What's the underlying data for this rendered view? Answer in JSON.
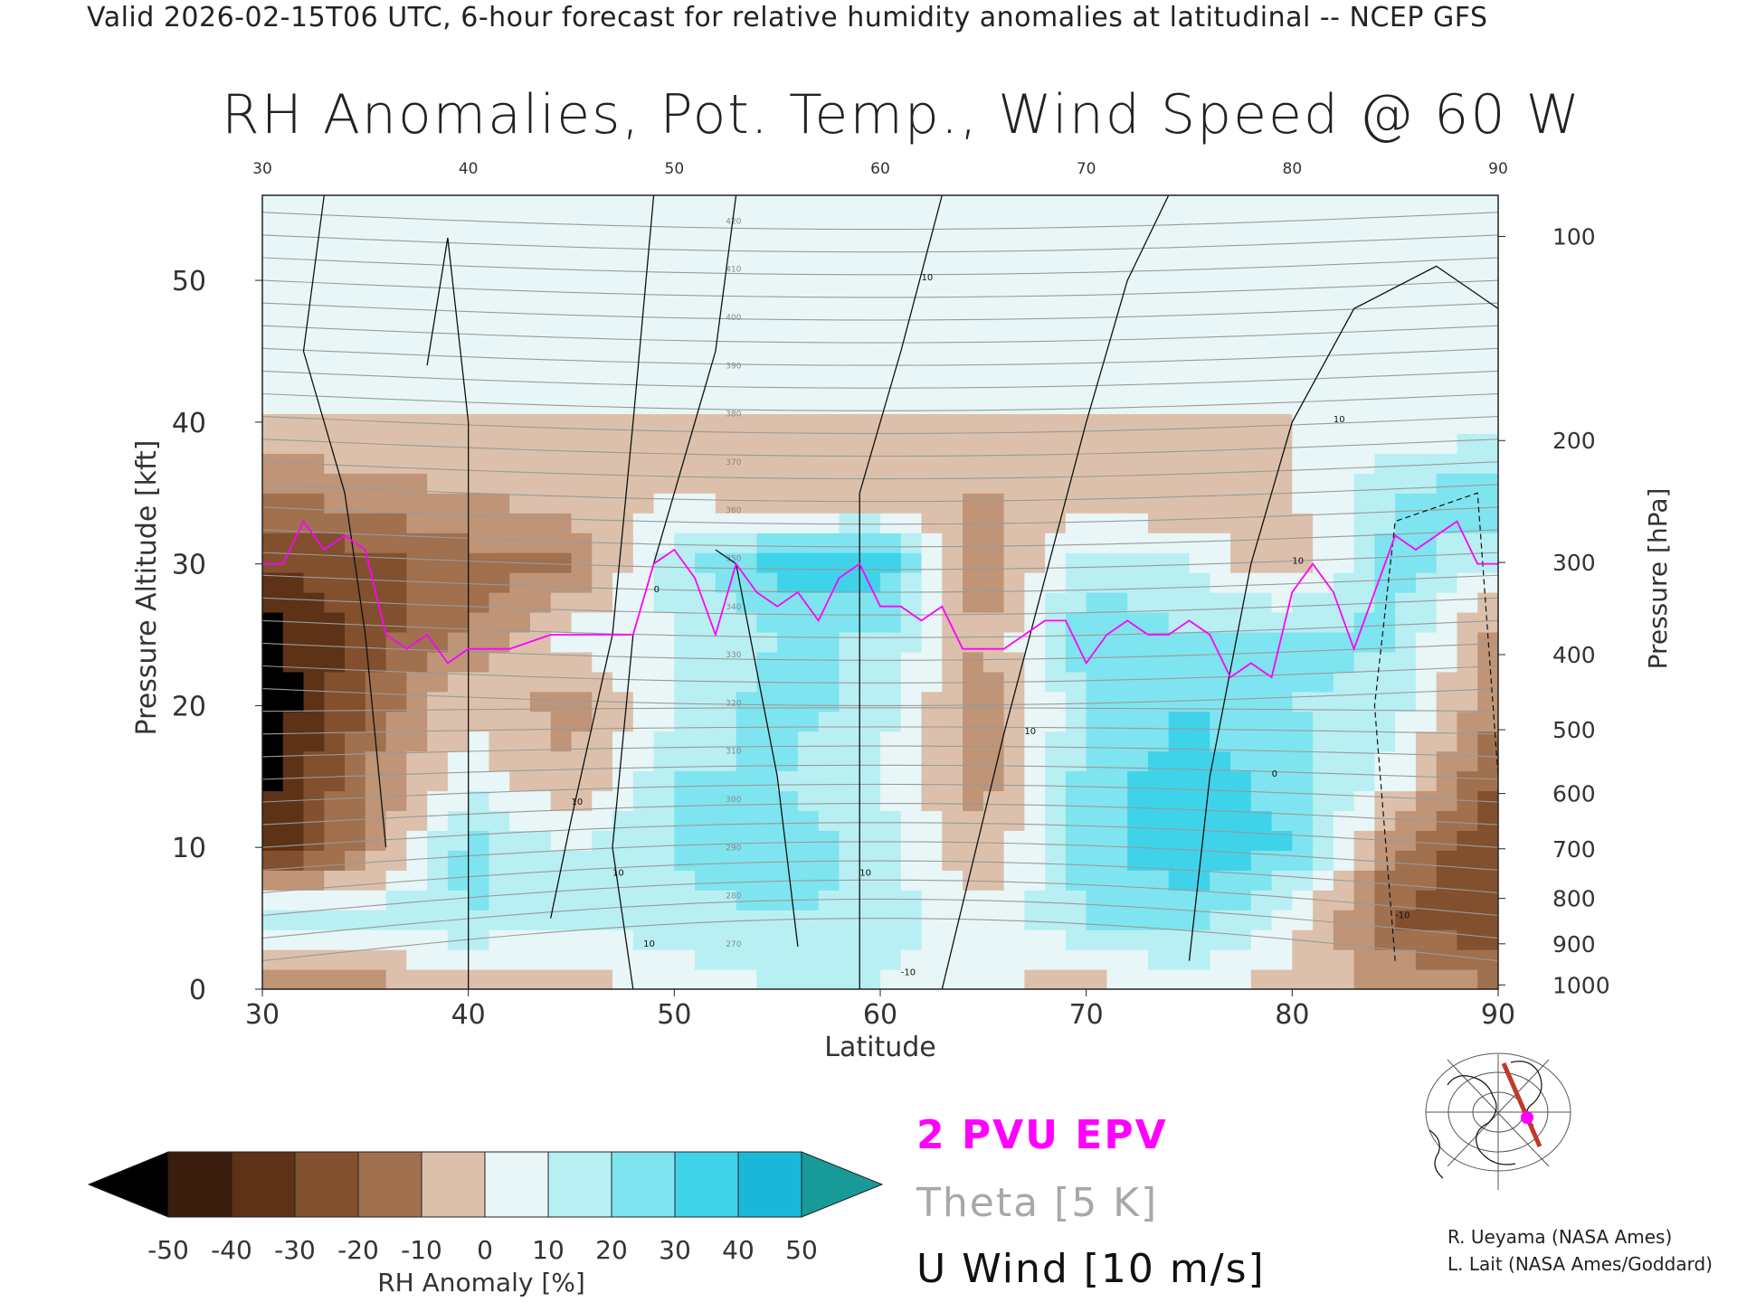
{
  "header": {
    "valid_line": "Valid 2026-02-15T06 UTC, 6-hour forecast for relative humidity anomalies at latitudinal -- NCEP GFS"
  },
  "chart_data": {
    "type": "heatmap",
    "title": "RH Anomalies, Pot. Temp., Wind Speed @ 60 W",
    "xlabel": "Latitude",
    "ylabel": "Pressure Altitude [kft]",
    "y2label": "Pressure [hPa]",
    "xlim": [
      30,
      90
    ],
    "ylim": [
      0,
      56
    ],
    "x_ticks": [
      30,
      40,
      50,
      60,
      70,
      80,
      90
    ],
    "y_ticks": [
      0,
      10,
      20,
      30,
      40,
      50
    ],
    "pressure_ticks": [
      {
        "hpa": "100",
        "kft": 53.1
      },
      {
        "hpa": "200",
        "kft": 38.7
      },
      {
        "hpa": "300",
        "kft": 30.1
      },
      {
        "hpa": "400",
        "kft": 23.6
      },
      {
        "hpa": "500",
        "kft": 18.3
      },
      {
        "hpa": "600",
        "kft": 13.8
      },
      {
        "hpa": "700",
        "kft": 9.9
      },
      {
        "hpa": "800",
        "kft": 6.4
      },
      {
        "hpa": "900",
        "kft": 3.2
      },
      {
        "hpa": "1000",
        "kft": 0.3
      }
    ],
    "colorbar": {
      "label": "RH Anomaly [%]",
      "ticks": [
        "-50",
        "-40",
        "-30",
        "-20",
        "-10",
        "0",
        "10",
        "20",
        "30",
        "40",
        "50"
      ],
      "colors": [
        "#3a1d0d",
        "#5e3217",
        "#82502e",
        "#a0704f",
        "#bf9477",
        "#dcc0ab",
        "#e8f6f7",
        "#b8eff3",
        "#7ee4ef",
        "#3fd3ea",
        "#1ab8d8",
        "#0a7a98"
      ],
      "under_color": "#000000",
      "over_color": "#179a98"
    },
    "rh_anomaly_field": {
      "x": [
        30,
        35,
        40,
        45,
        50,
        55,
        60,
        65,
        70,
        75,
        80,
        85,
        90
      ],
      "y": [
        0,
        5,
        10,
        15,
        20,
        25,
        30,
        35,
        40,
        45,
        50,
        55
      ],
      "values": [
        [
          -20,
          -15,
          -10,
          -5,
          5,
          10,
          10,
          0,
          -5,
          5,
          -5,
          -10,
          -20
        ],
        [
          20,
          15,
          20,
          10,
          15,
          20,
          15,
          5,
          20,
          25,
          5,
          -30,
          -40
        ],
        [
          -50,
          -20,
          25,
          10,
          20,
          30,
          15,
          -10,
          25,
          40,
          30,
          -20,
          -40
        ],
        [
          -55,
          -20,
          5,
          -10,
          20,
          20,
          10,
          -15,
          25,
          35,
          25,
          5,
          -30
        ],
        [
          -60,
          -30,
          0,
          -15,
          10,
          25,
          15,
          -20,
          20,
          30,
          20,
          15,
          -20
        ],
        [
          -55,
          -35,
          -20,
          5,
          10,
          20,
          20,
          -10,
          30,
          20,
          25,
          20,
          -15
        ],
        [
          -40,
          -35,
          -25,
          -20,
          15,
          35,
          40,
          -20,
          15,
          10,
          -10,
          25,
          10
        ],
        [
          -20,
          -15,
          -10,
          -5,
          0,
          -10,
          -10,
          -10,
          -5,
          -10,
          0,
          20,
          30
        ],
        [
          0,
          0,
          0,
          0,
          0,
          0,
          0,
          0,
          0,
          0,
          0,
          0,
          5
        ],
        [
          0,
          0,
          0,
          0,
          0,
          0,
          0,
          0,
          0,
          0,
          0,
          0,
          5
        ],
        [
          0,
          0,
          0,
          0,
          0,
          0,
          0,
          0,
          0,
          0,
          0,
          0,
          5
        ],
        [
          0,
          0,
          0,
          0,
          0,
          0,
          0,
          0,
          0,
          0,
          0,
          0,
          5
        ]
      ]
    },
    "theta_contours": {
      "interval_k": 5,
      "levels_labeled": [
        "270",
        "280",
        "290",
        "300",
        "310",
        "320",
        "330",
        "340",
        "350",
        "360",
        "370",
        "380",
        "390",
        "400",
        "410",
        "420"
      ]
    },
    "pvu_line": {
      "x": [
        30,
        31,
        32,
        33,
        34,
        35,
        36,
        37,
        38,
        39,
        40,
        42,
        44,
        46,
        48,
        49,
        50,
        51,
        52,
        53,
        54,
        55,
        56,
        57,
        58,
        59,
        60,
        61,
        62,
        63,
        64,
        65,
        66,
        67,
        68,
        69,
        70,
        71,
        72,
        73,
        74,
        75,
        76,
        77,
        78,
        79,
        80,
        81,
        82,
        83,
        84,
        85,
        86,
        87,
        88,
        89,
        90
      ],
      "y": [
        30,
        30,
        33,
        31,
        32,
        31,
        25,
        24,
        25,
        23,
        24,
        24,
        25,
        25,
        25,
        30,
        31,
        29,
        25,
        30,
        28,
        27,
        28,
        26,
        29,
        30,
        27,
        27,
        26,
        27,
        24,
        24,
        24,
        25,
        26,
        26,
        23,
        25,
        26,
        25,
        25,
        26,
        25,
        22,
        23,
        22,
        28,
        30,
        28,
        24,
        28,
        32,
        31,
        32,
        33,
        30,
        30
      ]
    },
    "u_wind_contours": {
      "interval_ms": 10,
      "labels": [
        "10",
        "10",
        "10",
        "0",
        "10",
        "10",
        "10",
        "-10",
        "0",
        "10",
        "10",
        "-10"
      ]
    },
    "legend": {
      "epv_label": "2 PVU EPV",
      "epv_color": "#ff00ff",
      "theta_label": "Theta [5 K]",
      "theta_color": "#a8a8a8",
      "wind_label": "U Wind [10 m/s]",
      "wind_color": "#111111"
    }
  },
  "credits": {
    "line1": "R. Ueyama (NASA Ames)",
    "line2": "L. Lait (NASA Ames/Goddard)"
  },
  "inset_map": {
    "section_color": "#c0392b",
    "marker_color": "#ff00ff"
  }
}
